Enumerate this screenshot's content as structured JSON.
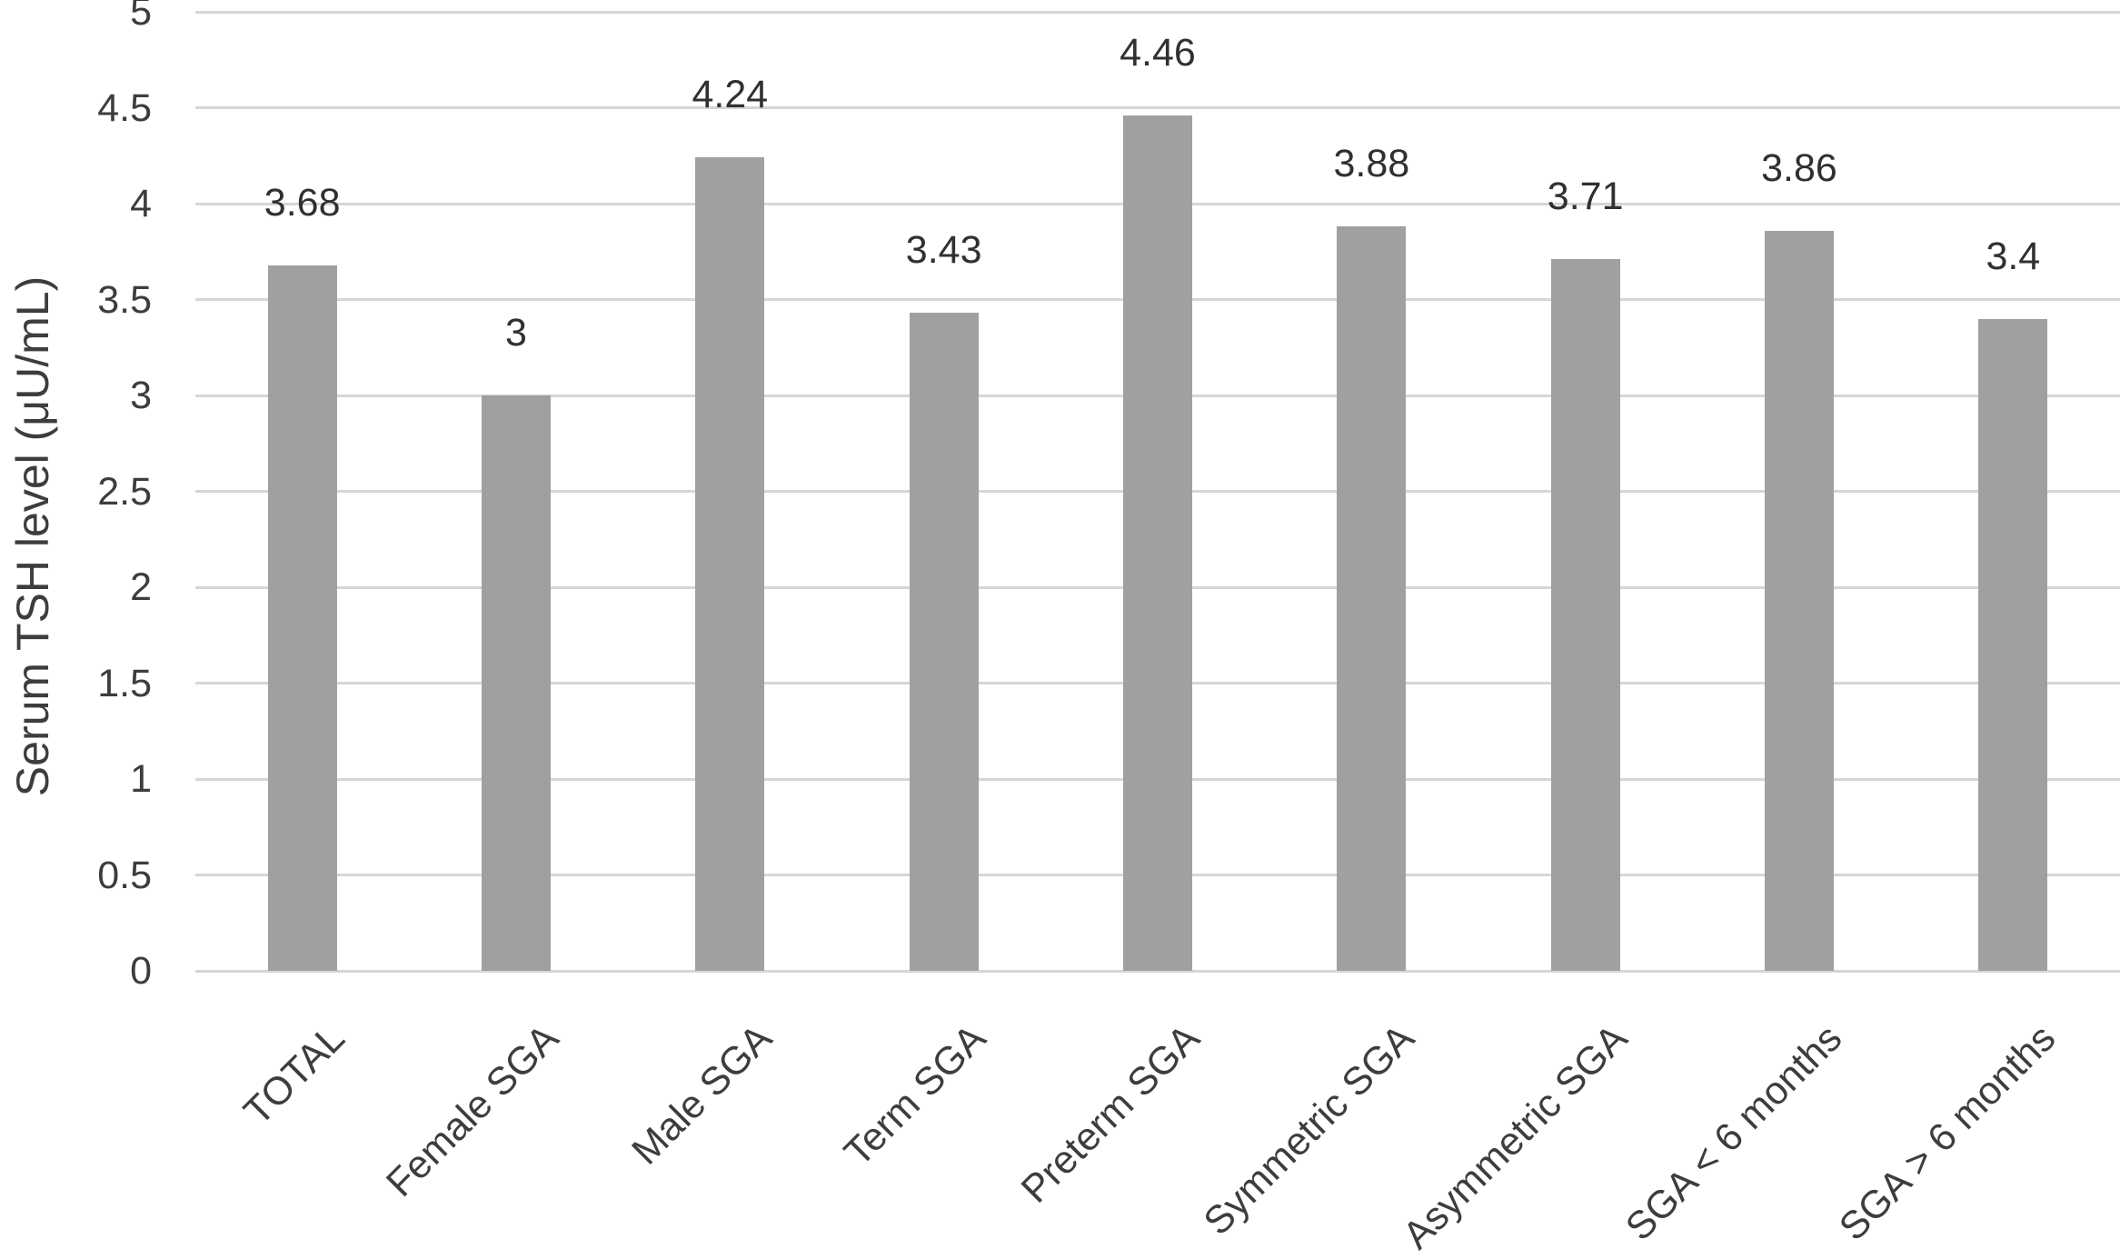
{
  "chart_data": {
    "type": "bar",
    "title": "",
    "xlabel": "",
    "ylabel": "Serum TSH level (μU/mL)",
    "categories": [
      "TOTAL",
      "Female SGA",
      "Male SGA",
      "Term SGA",
      "Preterm SGA",
      "Symmetric SGA",
      "Asymmetric SGA",
      "SGA < 6 months",
      "SGA > 6 months"
    ],
    "values": [
      3.68,
      3,
      4.24,
      3.43,
      4.46,
      3.88,
      3.71,
      3.86,
      3.4
    ],
    "value_labels": [
      "3.68",
      "3",
      "4.24",
      "3.43",
      "4.46",
      "3.88",
      "3.71",
      "3.86",
      "3.4"
    ],
    "yticks": [
      "0",
      "0.5",
      "1",
      "1.5",
      "2",
      "2.5",
      "3",
      "3.5",
      "4",
      "4.5",
      "5"
    ],
    "ylim": [
      0,
      5
    ],
    "ytick_step": 0.5,
    "grid": true,
    "legend": "none",
    "xtick_rotation_deg": 45,
    "colors": {
      "bar": "#a0a0a0",
      "gridline": "#d6d6d6",
      "text": "#3d3d3d"
    }
  }
}
